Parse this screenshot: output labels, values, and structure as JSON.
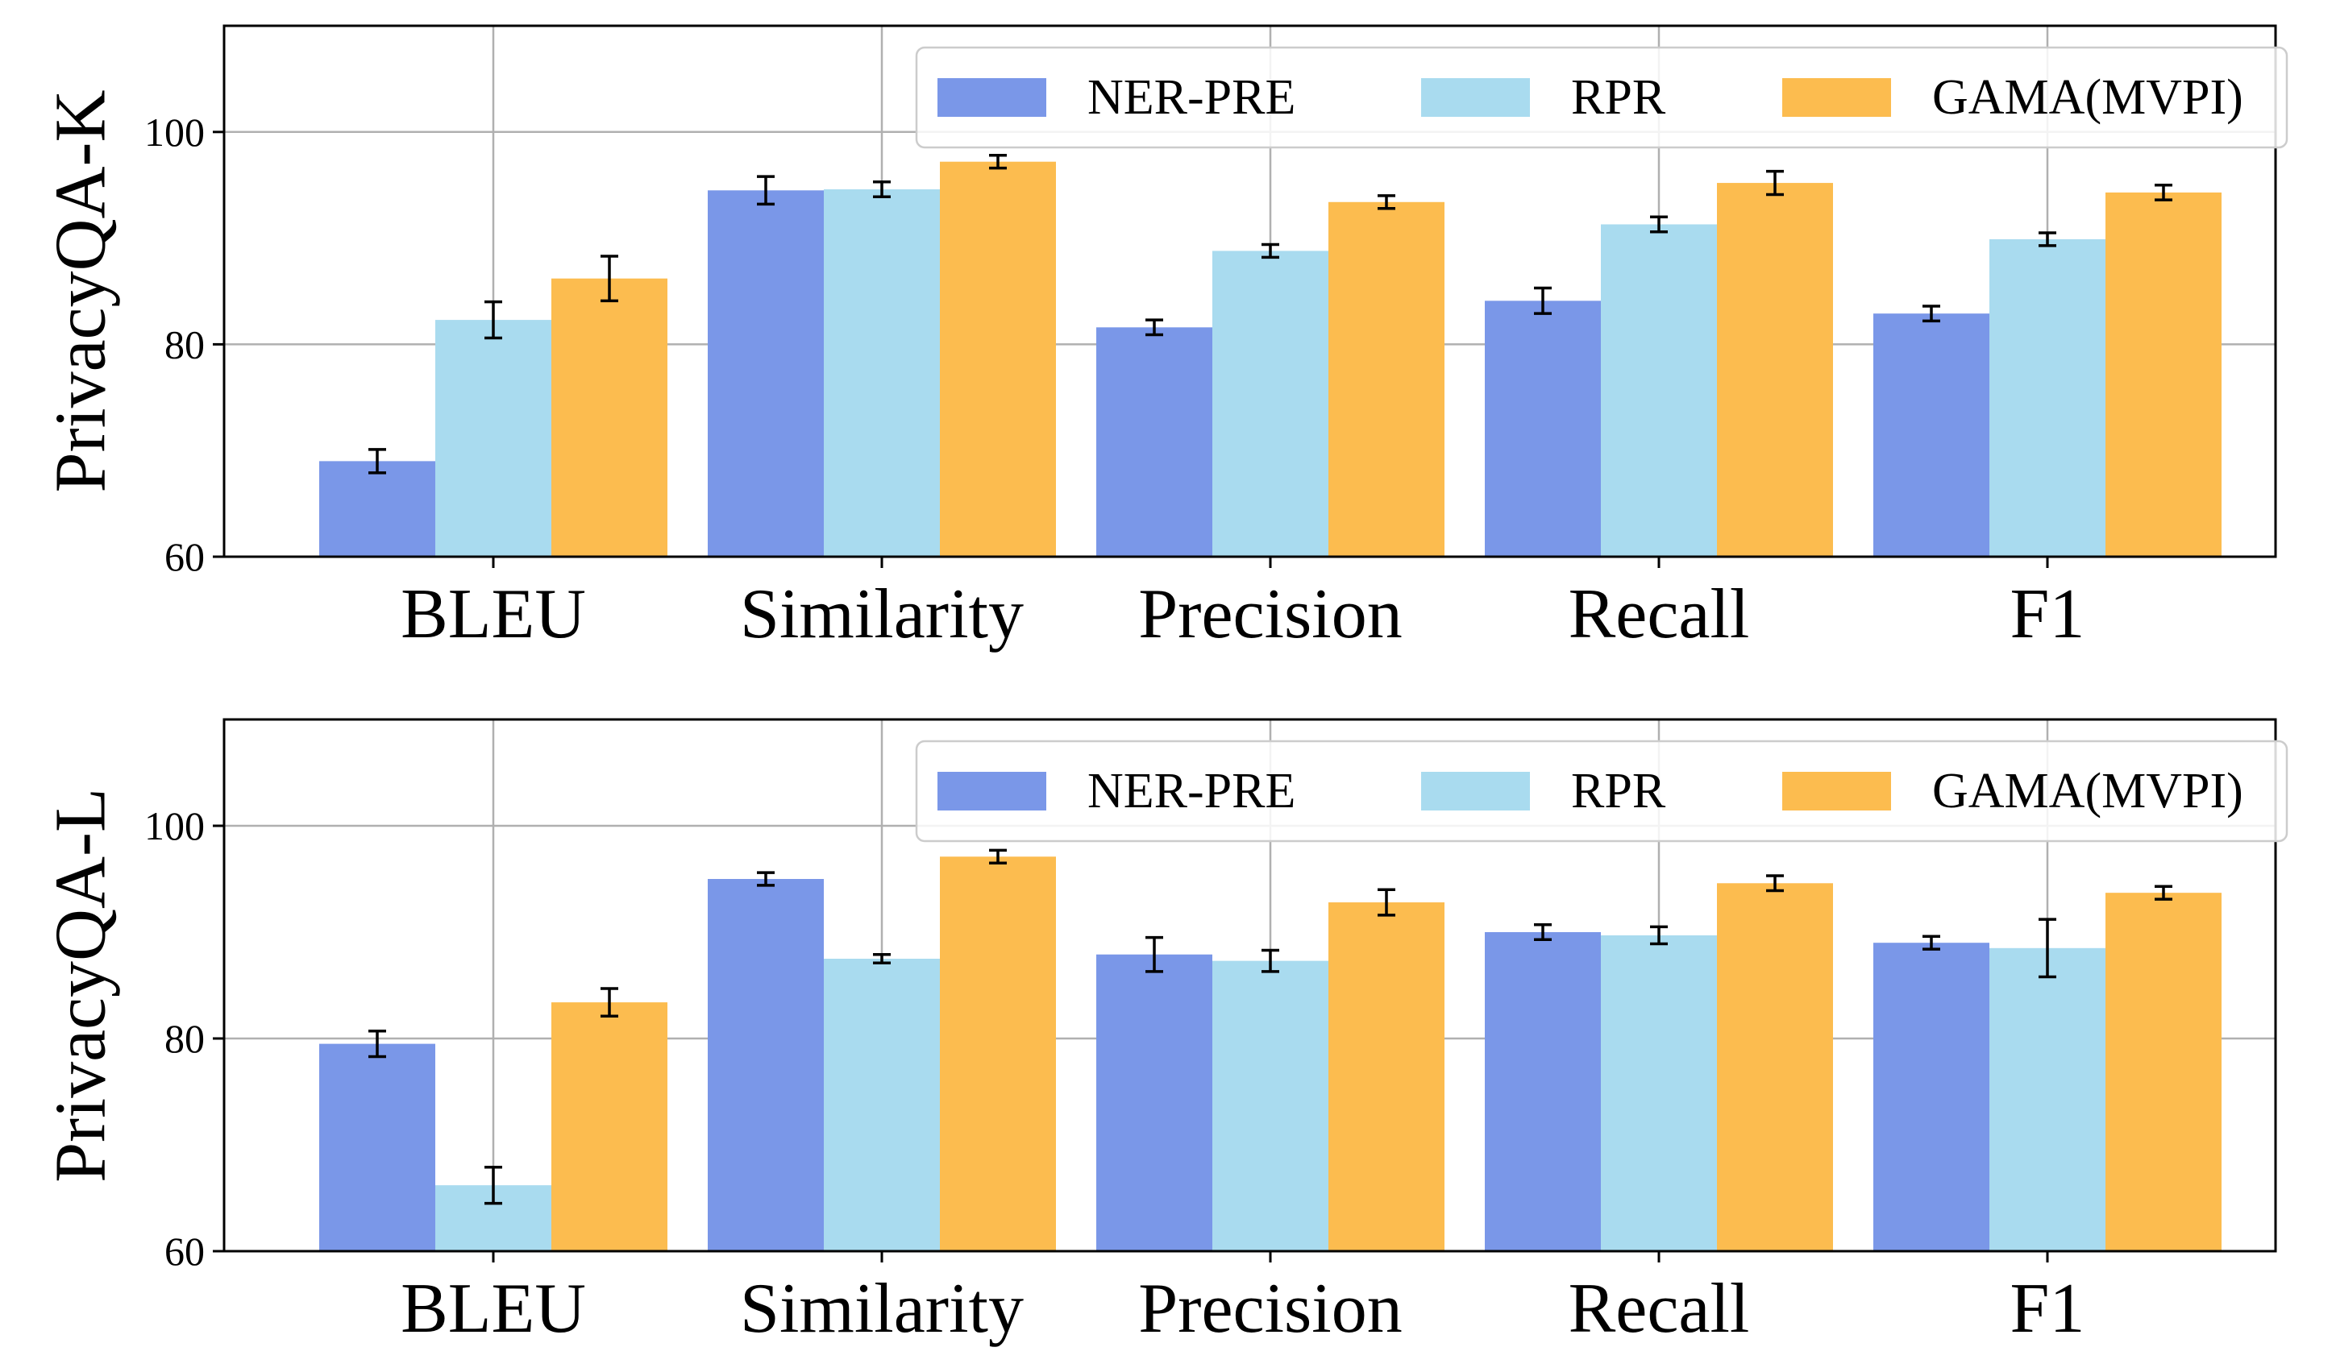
{
  "chart_data": [
    {
      "type": "bar",
      "ylabel": "PrivacyQA-K",
      "categories": [
        "BLEU",
        "Similarity",
        "Precision",
        "Recall",
        "F1"
      ],
      "ylim": [
        60,
        110
      ],
      "yticks": [
        60,
        80,
        100
      ],
      "grid": true,
      "legend": {
        "placement": "top-right",
        "columns": 3
      },
      "series": [
        {
          "name": "NER-PRE",
          "color": "#7a97e8",
          "values": [
            69.0,
            94.5,
            81.6,
            84.1,
            82.9
          ],
          "errors": [
            1.1,
            1.3,
            0.7,
            1.2,
            0.7
          ]
        },
        {
          "name": "RPR",
          "color": "#a9dbef",
          "values": [
            82.3,
            94.6,
            88.8,
            91.3,
            89.9
          ],
          "errors": [
            1.7,
            0.7,
            0.6,
            0.7,
            0.6
          ]
        },
        {
          "name": "GAMA(MVPI)",
          "color": "#fcbc4f",
          "values": [
            86.2,
            97.2,
            93.4,
            95.2,
            94.3
          ],
          "errors": [
            2.1,
            0.6,
            0.6,
            1.1,
            0.7
          ]
        }
      ]
    },
    {
      "type": "bar",
      "ylabel": "PrivacyQA-L",
      "categories": [
        "BLEU",
        "Similarity",
        "Precision",
        "Recall",
        "F1"
      ],
      "ylim": [
        60,
        110
      ],
      "yticks": [
        60,
        80,
        100
      ],
      "grid": true,
      "legend": {
        "placement": "top-right",
        "columns": 3
      },
      "series": [
        {
          "name": "NER-PRE",
          "color": "#7a97e8",
          "values": [
            79.5,
            95.0,
            87.9,
            90.0,
            89.0
          ],
          "errors": [
            1.2,
            0.6,
            1.6,
            0.7,
            0.6
          ]
        },
        {
          "name": "RPR",
          "color": "#a9dbef",
          "values": [
            66.2,
            87.5,
            87.3,
            89.7,
            88.5
          ],
          "errors": [
            1.7,
            0.4,
            1.0,
            0.8,
            2.7
          ]
        },
        {
          "name": "GAMA(MVPI)",
          "color": "#fcbc4f",
          "values": [
            83.4,
            97.1,
            92.8,
            94.6,
            93.7
          ],
          "errors": [
            1.3,
            0.6,
            1.2,
            0.7,
            0.6
          ]
        }
      ]
    }
  ]
}
